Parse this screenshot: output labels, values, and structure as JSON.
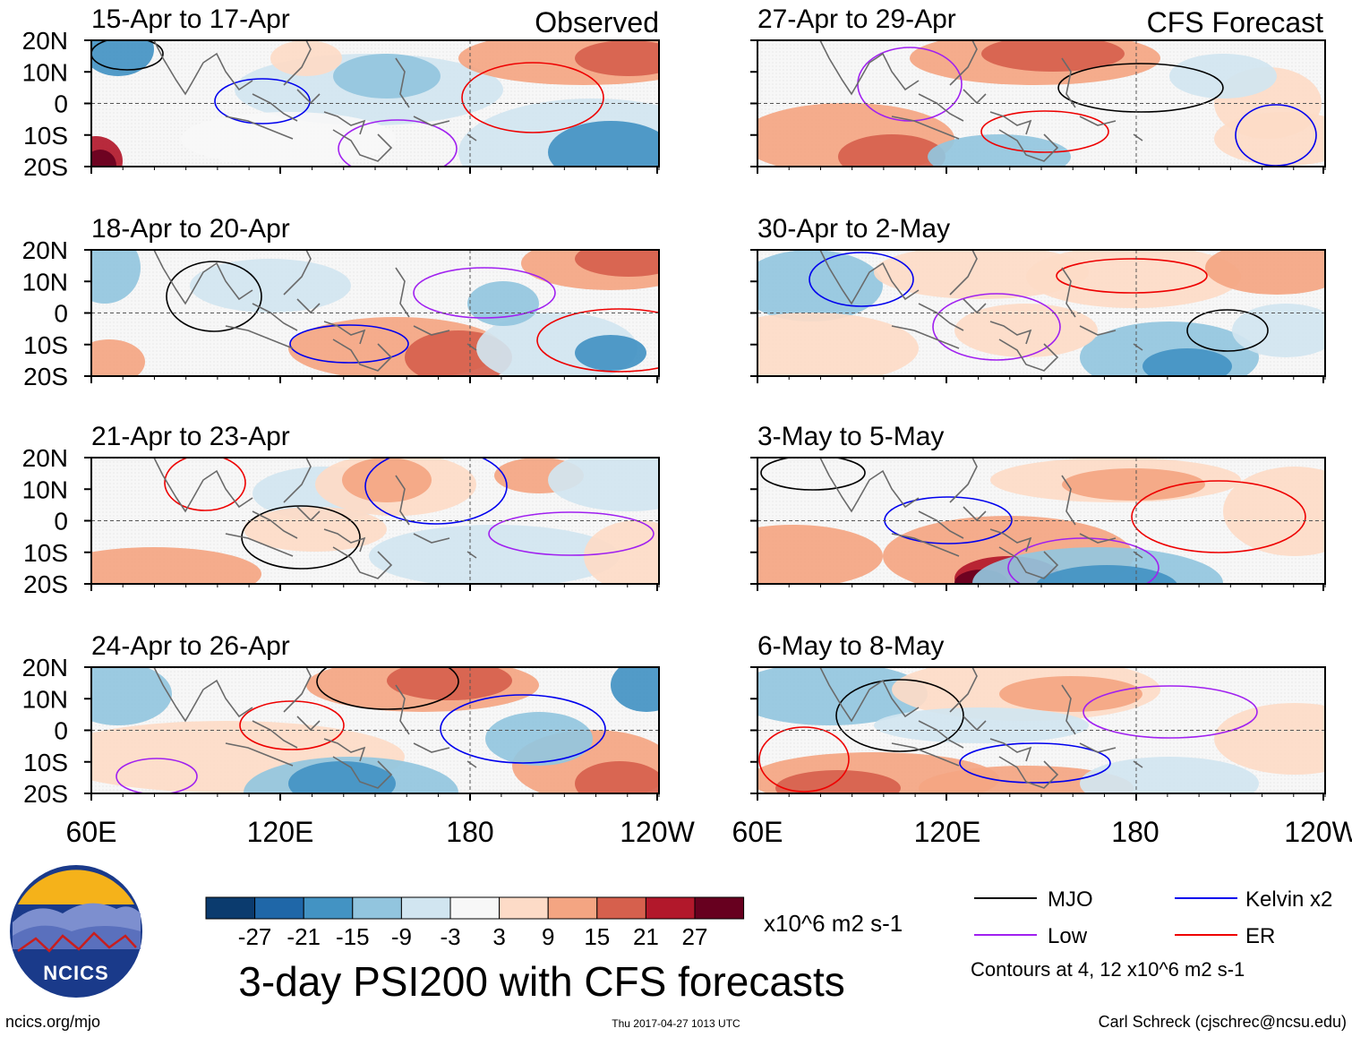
{
  "title": "3-day PSI200 with CFS forecasts",
  "source": "ncics.org/mjo",
  "timestamp": "Thu 2017-04-27 1013 UTC",
  "author": "Carl Schreck (cjschrec@ncsu.edu)",
  "logo_text": "NCICS",
  "columns": [
    {
      "heading": "Observed",
      "panels": [
        "15-Apr to 17-Apr",
        "18-Apr to 20-Apr",
        "21-Apr to 23-Apr",
        "24-Apr to 26-Apr"
      ]
    },
    {
      "heading": "CFS Forecast",
      "panels": [
        "27-Apr to 29-Apr",
        "30-Apr to 2-May",
        "3-May to 5-May",
        "6-May to 8-May"
      ]
    }
  ],
  "chart_data": {
    "type": "heatmap",
    "variable": "PSI200",
    "lon_ticks": [
      "60E",
      "120E",
      "180",
      "120W"
    ],
    "lat_ticks": [
      "20N",
      "10N",
      "0",
      "10S",
      "20S"
    ],
    "lon_range": [
      60,
      240
    ],
    "lat_range": [
      -20,
      20
    ],
    "colorbar": {
      "ticks": [
        "-27",
        "-21",
        "-15",
        "-9",
        "-3",
        "3",
        "9",
        "15",
        "21",
        "27"
      ],
      "units": "x10^6 m2 s-1",
      "colors": [
        "#0b3b6e",
        "#1f67a8",
        "#4393c3",
        "#92c5de",
        "#d1e5f0",
        "#f7f7f7",
        "#fddbc7",
        "#f4a582",
        "#d6604d",
        "#b2182b",
        "#67001f"
      ]
    },
    "contour_legend": [
      {
        "name": "MJO",
        "color": "#000000"
      },
      {
        "name": "Kelvin x2",
        "color": "#0000ee"
      },
      {
        "name": "Low",
        "color": "#a020f0"
      },
      {
        "name": "ER",
        "color": "#ee0000"
      }
    ],
    "contour_note": "Contours at 4, 12 x10^6 m2 s-1"
  }
}
